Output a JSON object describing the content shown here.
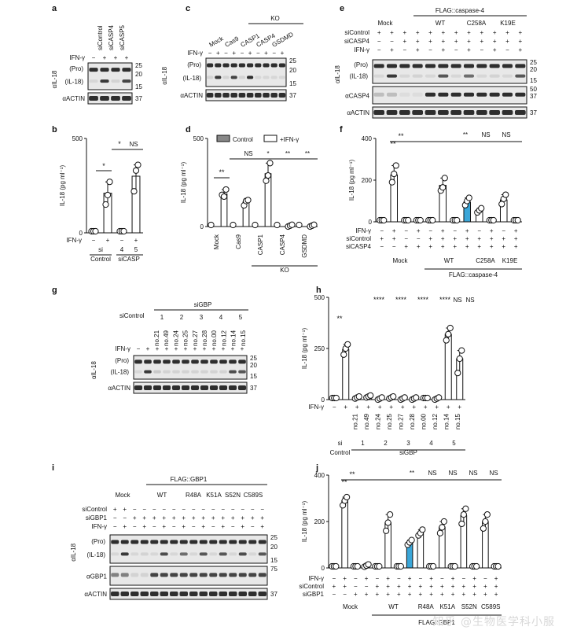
{
  "panels": [
    {
      "letter": "a",
      "x": 66,
      "y": 14
    },
    {
      "letter": "b",
      "x": 66,
      "y": 168
    },
    {
      "letter": "c",
      "x": 236,
      "y": 14
    },
    {
      "letter": "d",
      "x": 236,
      "y": 168
    },
    {
      "letter": "e",
      "x": 432,
      "y": 14
    },
    {
      "letter": "f",
      "x": 432,
      "y": 168
    },
    {
      "letter": "g",
      "x": 66,
      "y": 372
    },
    {
      "letter": "h",
      "x": 402,
      "y": 372
    },
    {
      "letter": "i",
      "x": 66,
      "y": 598
    },
    {
      "letter": "j",
      "x": 402,
      "y": 598
    }
  ],
  "blots": {
    "a": {
      "col_labels": [
        "siControl",
        "siCASP4",
        "siCASP5"
      ],
      "ifn_label": "IFN-γ",
      "ifn_signs": [
        "−",
        "+",
        "+",
        "+"
      ],
      "row_label": "αIL-18",
      "sub_labels": [
        "(Pro)",
        "(IL-18)"
      ],
      "loading_label": "αACTIN",
      "mw": [
        "25",
        "20",
        "15",
        "37"
      ],
      "cleaved_intensity": [
        0.05,
        0.85,
        0.1,
        0.8
      ]
    },
    "c": {
      "ko_label": "KO",
      "groups": [
        "Mock",
        "Cas9",
        "CASP1",
        "CASP4",
        "GSDMD"
      ],
      "ifn_label": "IFN-γ",
      "ifn_signs": [
        "−",
        "+",
        "−",
        "+",
        "−",
        "+",
        "−",
        "+",
        "−",
        "+"
      ],
      "row_label": "αIL-18",
      "sub_labels": [
        "(Pro)",
        "(IL-18)"
      ],
      "loading_label": "αACTIN",
      "mw": [
        "25",
        "20",
        "15",
        "37"
      ],
      "cleaved_intensity": [
        0.1,
        0.85,
        0.1,
        0.8,
        0.1,
        0.9,
        0.05,
        0.05,
        0.05,
        0.05
      ]
    },
    "e": {
      "title": "FLAG::caspase-4",
      "groups": [
        "Mock",
        "WT",
        "C258A",
        "K19E"
      ],
      "rows": [
        {
          "label": "siControl",
          "signs": [
            "+",
            "+",
            "+",
            "+",
            "+",
            "+",
            "+",
            "+",
            "+",
            "+",
            "+",
            "+"
          ]
        },
        {
          "label": "siCASP4",
          "signs": [
            "−",
            "−",
            "+",
            "+",
            "+",
            "+",
            "+",
            "+",
            "+",
            "+",
            "+",
            "+"
          ]
        },
        {
          "label": "IFN-γ",
          "signs": [
            "−",
            "+",
            "−",
            "+",
            "−",
            "+",
            "−",
            "+",
            "−",
            "+",
            "−",
            "+"
          ]
        }
      ],
      "row_label": "αIL-18",
      "sub_labels": [
        "(Pro)",
        "(IL-18)"
      ],
      "casp_label": "αCASP4",
      "loading_label": "αACTIN",
      "mw": [
        "25",
        "20",
        "15",
        "50",
        "37",
        "37"
      ],
      "cleaved_intensity": [
        0.05,
        0.85,
        0.05,
        0.1,
        0.05,
        0.7,
        0.05,
        0.6,
        0.05,
        0.1,
        0.05,
        0.7
      ]
    },
    "g": {
      "title": "siGBP",
      "control_label": "siControl",
      "numbers": [
        "1",
        "2",
        "3",
        "4",
        "5"
      ],
      "sirna_ids": [
        "no.21",
        "no.49",
        "no.24",
        "no.25",
        "no.27",
        "no.28",
        "no.00",
        "no.12",
        "no.14",
        "no.15"
      ],
      "ifn_label": "IFN-γ",
      "ifn_signs": [
        "−",
        "+",
        "+",
        "+",
        "+",
        "+",
        "+",
        "+",
        "+",
        "+",
        "+",
        "+"
      ],
      "row_label": "αIL-18",
      "sub_labels": [
        "(Pro)",
        "(IL-18)"
      ],
      "loading_label": "αACTIN",
      "mw": [
        "25",
        "20",
        "15",
        "37"
      ],
      "cleaved_intensity": [
        0.05,
        0.85,
        0.15,
        0.1,
        0.1,
        0.1,
        0.1,
        0.1,
        0.1,
        0.1,
        0.75,
        0.7
      ]
    },
    "i": {
      "title": "FLAG::GBP1",
      "groups": [
        "Mock",
        "WT",
        "R48A",
        "K51A",
        "S52N",
        "C589S"
      ],
      "rows": [
        {
          "label": "siControl",
          "signs": [
            "+",
            "+",
            "−",
            "−",
            "−",
            "−",
            "−",
            "−",
            "−",
            "−",
            "−",
            "−",
            "−",
            "−",
            "−",
            "−"
          ]
        },
        {
          "label": "siGBP1",
          "signs": [
            "−",
            "−",
            "+",
            "+",
            "+",
            "+",
            "+",
            "+",
            "+",
            "+",
            "+",
            "+",
            "+",
            "+",
            "+",
            "+"
          ]
        },
        {
          "label": "IFN-γ",
          "signs": [
            "−",
            "+",
            "−",
            "+",
            "−",
            "+",
            "−",
            "+",
            "−",
            "+",
            "−",
            "+",
            "−",
            "+",
            "−",
            "+"
          ]
        }
      ],
      "row_label": "αIL-18",
      "sub_labels": [
        "(Pro)",
        "(IL-18)"
      ],
      "gbp_label": "αGBP1",
      "loading_label": "αACTIN",
      "mw": [
        "25",
        "20",
        "15",
        "75",
        "37"
      ],
      "cleaved_intensity": [
        0.05,
        0.85,
        0.05,
        0.1,
        0.05,
        0.75,
        0.05,
        0.6,
        0.05,
        0.7,
        0.05,
        0.7,
        0.05,
        0.75,
        0.05,
        0.7
      ]
    }
  },
  "chart_data": [
    {
      "panel": "b",
      "type": "bar",
      "ylabel": "IL-18 (pg ml⁻¹)",
      "ylim": [
        0,
        500
      ],
      "yticks": [
        0,
        500
      ],
      "row_labels": [
        "IFN-γ",
        "si"
      ],
      "x_signs": [
        "−",
        "+",
        "−",
        "+"
      ],
      "x_si": [
        "",
        "",
        "4",
        "5"
      ],
      "group_labels": [
        {
          "text": "si",
          "span": [
            0,
            1
          ],
          "sub": "Control"
        },
        {
          "text": "siCASP",
          "span": [
            2,
            3
          ]
        }
      ],
      "values": [
        0,
        210,
        0,
        300
      ],
      "points": [
        [
          0,
          0,
          0
        ],
        [
          150,
          200,
          270
        ],
        [
          0,
          0,
          0
        ],
        [
          220,
          330,
          360
        ]
      ],
      "highlight": [],
      "significance": [
        {
          "from": 0,
          "to": 1,
          "label": "*"
        },
        {
          "from": 1,
          "to": 2,
          "label": "*"
        },
        {
          "from": 1,
          "to": 3,
          "label": "NS"
        }
      ]
    },
    {
      "panel": "d",
      "type": "bar",
      "ylabel": "IL-18 (pg ml⁻¹)",
      "ylim": [
        0,
        500
      ],
      "yticks": [
        0,
        500
      ],
      "legend": [
        {
          "name": "Control",
          "fill": "#888888"
        },
        {
          "name": "+IFN-γ",
          "fill": "#ffffff"
        }
      ],
      "categories": [
        "Mock",
        "Cas9",
        "CASP1",
        "CASP4",
        "GSDMD"
      ],
      "ko_label": "KO",
      "series": [
        {
          "name": "Control",
          "values": [
            0,
            0,
            0,
            0,
            0
          ]
        },
        {
          "name": "+IFN-γ",
          "values": [
            185,
            140,
            300,
            5,
            5
          ]
        }
      ],
      "points": [
        [
          180,
          170,
          210
        ],
        [
          120,
          145,
          150
        ],
        [
          260,
          290,
          360
        ],
        [
          0,
          5,
          10
        ],
        [
          0,
          5,
          10
        ]
      ],
      "significance": [
        {
          "label": "**"
        },
        {
          "label": "NS"
        },
        {
          "label": "*"
        },
        {
          "label": "**"
        },
        {
          "label": "**"
        }
      ]
    },
    {
      "panel": "f",
      "type": "bar",
      "ylabel": "IL-18 (pg ml⁻¹)",
      "ylim": [
        0,
        400
      ],
      "yticks": [
        0,
        200,
        400
      ],
      "title": "FLAG::caspase-4",
      "rows": [
        {
          "label": "IFN-γ",
          "signs": [
            "−",
            "+",
            "−",
            "+",
            "−",
            "+",
            "−",
            "+",
            "−",
            "+",
            "−",
            "+"
          ]
        },
        {
          "label": "siControl",
          "signs": [
            "+",
            "+",
            "−",
            "−",
            "+",
            "+",
            "+",
            "+",
            "+",
            "+",
            "+",
            "+"
          ]
        },
        {
          "label": "siCASP4",
          "signs": [
            "−",
            "−",
            "+",
            "+",
            "+",
            "+",
            "+",
            "+",
            "+",
            "+",
            "+",
            "+"
          ]
        }
      ],
      "groups": [
        "Mock",
        "WT",
        "C258A",
        "K19E"
      ],
      "values": [
        0,
        225,
        0,
        0,
        0,
        175,
        0,
        95,
        55,
        0,
        105,
        0
      ],
      "points": [
        [
          0,
          0,
          0
        ],
        [
          190,
          230,
          270
        ],
        [
          0,
          0,
          0
        ],
        [
          0,
          0,
          0
        ],
        [
          0,
          0,
          0
        ],
        [
          150,
          165,
          210
        ],
        [
          0,
          0,
          0
        ],
        [
          80,
          100,
          115
        ],
        [
          45,
          55,
          65
        ],
        [
          0,
          0,
          0
        ],
        [
          85,
          110,
          130
        ],
        [
          0,
          0,
          0
        ]
      ],
      "highlight": [
        7
      ],
      "significance": [
        {
          "label": "**"
        },
        {
          "label": "**"
        },
        {
          "label": "**"
        },
        {
          "label": "NS"
        },
        {
          "label": "NS"
        }
      ]
    },
    {
      "panel": "h",
      "type": "bar",
      "ylabel": "IL-18 (pg ml⁻¹)",
      "ylim": [
        0,
        500
      ],
      "yticks": [
        0,
        250,
        500
      ],
      "ifn_signs": [
        "−",
        "+",
        "+",
        "+",
        "+",
        "+",
        "+",
        "+",
        "+",
        "+",
        "+",
        "+"
      ],
      "sirna_ids": [
        "no.21",
        "no.49",
        "no.24",
        "no.25",
        "no.27",
        "no.28",
        "no.00",
        "no.12",
        "no.14",
        "no.15"
      ],
      "group_labels": [
        {
          "text": "si",
          "sub": "Control"
        },
        {
          "text": "siGBP",
          "numbers": [
            "1",
            "2",
            "3",
            "4",
            "5"
          ]
        }
      ],
      "values": [
        0,
        245,
        10,
        15,
        5,
        10,
        5,
        5,
        0,
        5,
        320,
        200
      ],
      "points": [
        [
          0,
          0,
          0
        ],
        [
          220,
          250,
          270
        ],
        [
          5,
          10,
          15
        ],
        [
          10,
          15,
          20
        ],
        [
          0,
          5,
          10
        ],
        [
          5,
          10,
          15
        ],
        [
          0,
          5,
          10
        ],
        [
          0,
          5,
          10
        ],
        [
          0,
          0,
          0
        ],
        [
          0,
          5,
          10
        ],
        [
          290,
          320,
          350
        ],
        [
          130,
          200,
          240
        ]
      ],
      "highlight": [],
      "significance": [
        {
          "label": "**"
        },
        {
          "label": "****"
        },
        {
          "label": "****"
        },
        {
          "label": "****"
        },
        {
          "label": "****"
        },
        {
          "label": "NS"
        },
        {
          "label": "NS"
        }
      ]
    },
    {
      "panel": "j",
      "type": "bar",
      "ylabel": "IL-18 (pg ml⁻¹)",
      "ylim": [
        0,
        400
      ],
      "yticks": [
        0,
        200,
        400
      ],
      "title": "FLAG::GBP1",
      "rows": [
        {
          "label": "IFN-γ",
          "signs": [
            "−",
            "+",
            "−",
            "+",
            "−",
            "+",
            "−",
            "+",
            "−",
            "+",
            "−",
            "+",
            "−",
            "+",
            "−",
            "+"
          ]
        },
        {
          "label": "siControl",
          "signs": [
            "+",
            "+",
            "−",
            "−",
            "+",
            "+",
            "+",
            "+",
            "+",
            "+",
            "+",
            "+",
            "+",
            "+",
            "+",
            "+"
          ]
        },
        {
          "label": "siGBP1",
          "signs": [
            "−",
            "−",
            "+",
            "+",
            "+",
            "+",
            "+",
            "+",
            "+",
            "+",
            "+",
            "+",
            "+",
            "+",
            "+",
            "+"
          ]
        }
      ],
      "groups": [
        "Mock",
        "WT",
        "R48A",
        "K51A",
        "S52N",
        "C589S"
      ],
      "values": [
        0,
        290,
        0,
        10,
        0,
        195,
        0,
        110,
        150,
        0,
        175,
        0,
        225,
        0,
        200,
        0
      ],
      "points": [
        [
          0,
          0,
          0
        ],
        [
          270,
          290,
          305
        ],
        [
          0,
          0,
          0
        ],
        [
          5,
          10,
          15
        ],
        [
          0,
          0,
          0
        ],
        [
          160,
          195,
          230
        ],
        [
          0,
          0,
          0
        ],
        [
          100,
          110,
          120
        ],
        [
          140,
          150,
          165
        ],
        [
          0,
          0,
          0
        ],
        [
          150,
          175,
          200
        ],
        [
          0,
          0,
          0
        ],
        [
          190,
          230,
          255
        ],
        [
          0,
          0,
          0
        ],
        [
          170,
          200,
          230
        ],
        [
          0,
          0,
          0
        ]
      ],
      "highlight": [
        7
      ],
      "significance": [
        {
          "label": "**"
        },
        {
          "label": "**"
        },
        {
          "label": "**"
        },
        {
          "label": "NS"
        },
        {
          "label": "NS"
        },
        {
          "label": "NS"
        },
        {
          "label": "NS"
        }
      ]
    }
  ],
  "colors": {
    "highlight": "#3aa6d8",
    "control_fill": "#888888",
    "band": "#1a1a1a"
  },
  "watermark": "知乎 @生物医学科小服"
}
